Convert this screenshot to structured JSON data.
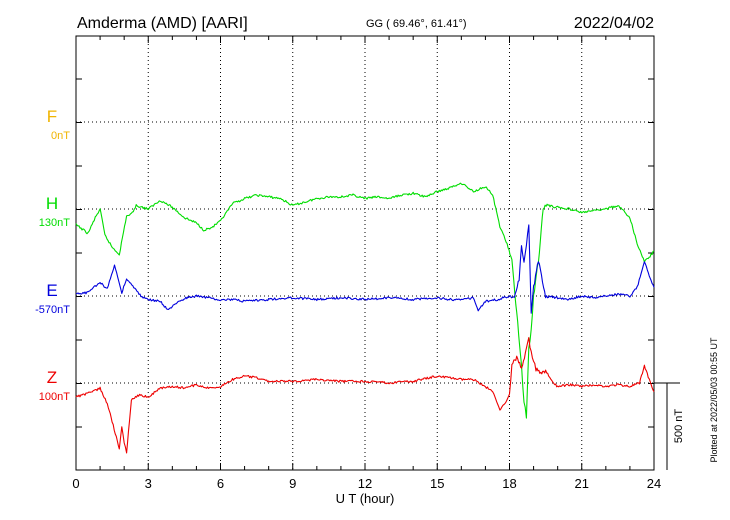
{
  "header": {
    "station": "Amderma (AMD)  [AARI]",
    "coords": "GG ( 69.46°,  61.41°)",
    "date": "2022/04/02"
  },
  "footer_note": "Plotted at 2022/05/03 00:55 UT",
  "chart_data": {
    "type": "line",
    "xlabel": "U T (hour)",
    "xlim": [
      0,
      24
    ],
    "xticks": [
      "0",
      "3",
      "6",
      "9",
      "12",
      "15",
      "18",
      "21",
      "24"
    ],
    "scale_bar": {
      "label": "500 nT",
      "value_nT": 500
    },
    "colors": {
      "F": "#f0b400",
      "H": "#00dd00",
      "E": "#0000dd",
      "Z": "#ee0000"
    },
    "series": [
      {
        "name": "F",
        "baseline_label": "0nT",
        "x": [],
        "values": []
      },
      {
        "name": "H",
        "baseline_label": "130nT",
        "x": [
          0,
          0.5,
          0.8,
          1.0,
          1.2,
          1.5,
          1.8,
          2.1,
          2.3,
          2.5,
          3.0,
          3.5,
          4.0,
          4.5,
          5.0,
          5.3,
          5.6,
          6.0,
          6.5,
          7.0,
          7.5,
          8.0,
          8.5,
          9.0,
          9.5,
          10.0,
          10.5,
          11.0,
          11.5,
          12.0,
          12.5,
          13.0,
          13.5,
          14.0,
          14.5,
          15.0,
          15.5,
          16.0,
          16.5,
          17.0,
          17.3,
          17.6,
          17.9,
          18.1,
          18.3,
          18.5,
          18.6,
          18.7,
          18.8,
          18.9,
          19.0,
          19.2,
          19.4,
          19.6,
          20.0,
          20.5,
          21.0,
          21.5,
          22.0,
          22.5,
          23.0,
          23.3,
          23.6,
          23.8,
          24.0
        ],
        "values": [
          -90,
          -140,
          -50,
          0,
          -150,
          -220,
          -260,
          -40,
          -30,
          20,
          0,
          50,
          10,
          -50,
          -80,
          -120,
          -110,
          -70,
          30,
          60,
          80,
          70,
          60,
          20,
          40,
          60,
          70,
          70,
          80,
          60,
          70,
          60,
          80,
          90,
          70,
          100,
          120,
          150,
          100,
          130,
          80,
          -100,
          -200,
          -300,
          -600,
          -900,
          -1100,
          -1200,
          -800,
          -700,
          -500,
          -300,
          10,
          20,
          10,
          0,
          -20,
          -10,
          0,
          20,
          -50,
          -200,
          -300,
          -280,
          -240
        ]
      },
      {
        "name": "E",
        "baseline_label": "-570nT",
        "x": [
          0,
          0.5,
          1.0,
          1.3,
          1.6,
          1.9,
          2.1,
          2.4,
          2.7,
          3.0,
          3.5,
          3.8,
          4.2,
          4.6,
          5.0,
          5.5,
          6.0,
          6.5,
          7.0,
          8.0,
          9.0,
          10.0,
          11.0,
          12.0,
          13.0,
          14.0,
          15.0,
          15.5,
          16.0,
          16.5,
          16.7,
          17.0,
          17.5,
          18.0,
          18.2,
          18.4,
          18.5,
          18.6,
          18.7,
          18.8,
          18.9,
          19.0,
          19.2,
          19.5,
          20.0,
          20.5,
          21.0,
          21.5,
          22.0,
          22.5,
          23.0,
          23.3,
          23.6,
          23.8,
          24.0
        ],
        "values": [
          10,
          20,
          80,
          40,
          180,
          20,
          100,
          50,
          0,
          -20,
          -30,
          -80,
          -40,
          -10,
          0,
          -10,
          -20,
          -20,
          -30,
          -20,
          -10,
          -20,
          -10,
          -20,
          -10,
          -20,
          -10,
          -20,
          -20,
          -10,
          -80,
          -30,
          -20,
          0,
          -20,
          100,
          300,
          200,
          300,
          400,
          -100,
          50,
          200,
          0,
          -10,
          -20,
          0,
          -10,
          0,
          10,
          0,
          50,
          200,
          120,
          50
        ]
      },
      {
        "name": "Z",
        "baseline_label": "100nT",
        "x": [
          0,
          0.5,
          1.0,
          1.3,
          1.5,
          1.8,
          1.9,
          2.0,
          2.1,
          2.3,
          2.6,
          3.0,
          3.5,
          4.0,
          4.5,
          5.0,
          5.5,
          6.0,
          6.5,
          7.0,
          7.5,
          8.0,
          9.0,
          10.0,
          11.0,
          12.0,
          13.0,
          14.0,
          15.0,
          15.5,
          16.0,
          16.5,
          17.0,
          17.3,
          17.6,
          17.9,
          18.0,
          18.1,
          18.3,
          18.5,
          18.7,
          18.8,
          18.9,
          19.0,
          19.1,
          19.3,
          19.5,
          19.8,
          20.0,
          20.5,
          21.0,
          21.5,
          22.0,
          22.5,
          23.0,
          23.4,
          23.6,
          23.8,
          24.0
        ],
        "values": [
          -80,
          -60,
          -30,
          -120,
          -220,
          -380,
          -250,
          -340,
          -400,
          -100,
          -70,
          -80,
          -30,
          -20,
          -30,
          -10,
          -30,
          -20,
          20,
          40,
          30,
          10,
          10,
          20,
          10,
          10,
          0,
          10,
          40,
          30,
          20,
          20,
          -20,
          -50,
          -150,
          -100,
          -60,
          100,
          150,
          80,
          200,
          250,
          180,
          120,
          80,
          50,
          70,
          0,
          -20,
          -10,
          -20,
          -10,
          -20,
          -10,
          -20,
          0,
          100,
          20,
          -50
        ]
      }
    ]
  }
}
